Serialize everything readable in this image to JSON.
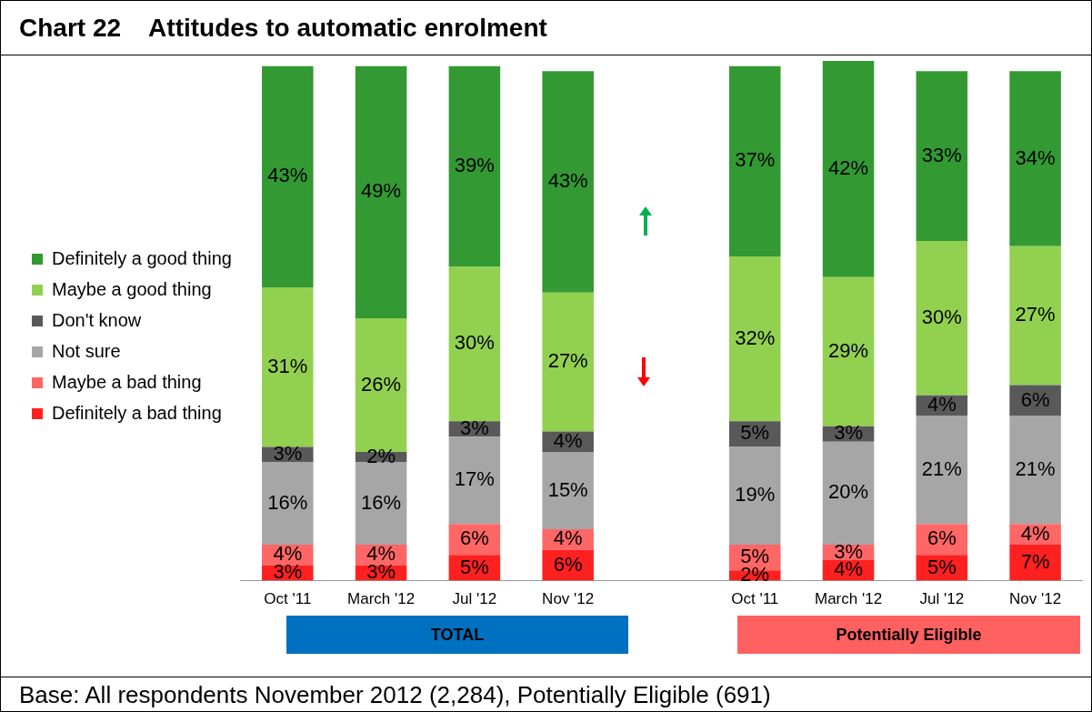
{
  "chart_data": {
    "type": "bar",
    "title": "Chart 22    Attitudes to automatic enrolment",
    "categories": [
      "Oct '11",
      "March '12",
      "Jul '12",
      "Nov '12",
      null,
      "Oct '11",
      "March '12",
      "Jul '12",
      "Nov '12"
    ],
    "stacked": true,
    "legend": "left",
    "series": [
      {
        "name": "Definitely a bad thing",
        "color": "#ff2020",
        "values": [
          3,
          3,
          5,
          6,
          null,
          2,
          4,
          5,
          7
        ],
        "value_labels": [
          "3%",
          "3%",
          "5%",
          "6%",
          null,
          "2%",
          "4%",
          "5%",
          "7%"
        ]
      },
      {
        "name": "Maybe a bad thing",
        "color": "#ff6666",
        "values": [
          4,
          4,
          6,
          4,
          null,
          5,
          3,
          6,
          4
        ],
        "value_labels": [
          "4%",
          "4%",
          "6%",
          "4%",
          null,
          "5%",
          "3%",
          "6%",
          "4%"
        ]
      },
      {
        "name": "Not sure",
        "color": "#a6a6a6",
        "values": [
          16,
          16,
          17,
          15,
          null,
          19,
          20,
          21,
          21
        ],
        "value_labels": [
          "16%",
          "16%",
          "17%",
          "15%",
          null,
          "19%",
          "20%",
          "21%",
          "21%"
        ]
      },
      {
        "name": "Don't know",
        "color": "#595959",
        "values": [
          3,
          2,
          3,
          4,
          null,
          5,
          3,
          4,
          6
        ],
        "value_labels": [
          "3%",
          "2%",
          "3%",
          "4%",
          null,
          "5%",
          "3%",
          "4%",
          "6%"
        ]
      },
      {
        "name": "Maybe a good thing",
        "color": "#92d050",
        "values": [
          31,
          26,
          30,
          27,
          null,
          32,
          29,
          30,
          27
        ],
        "value_labels": [
          "31%",
          "26%",
          "30%",
          "27%",
          null,
          "32%",
          "29%",
          "30%",
          "27%"
        ]
      },
      {
        "name": "Definitely a good thing",
        "color": "#339933",
        "values": [
          43,
          49,
          39,
          43,
          null,
          37,
          42,
          33,
          34
        ],
        "value_labels": [
          "43%",
          "49%",
          "39%",
          "43%",
          null,
          "37%",
          "42%",
          "33%",
          "34%"
        ]
      }
    ],
    "annotations": [
      "TOTAL",
      "Potentially Eligible",
      "Base: All respondents November 2012 (2,284), Potentially Eligible (691)"
    ]
  }
}
